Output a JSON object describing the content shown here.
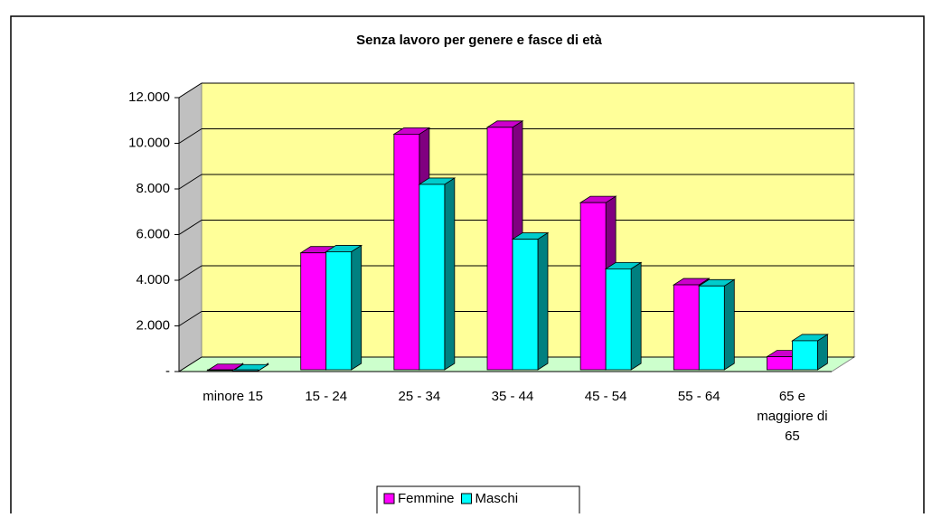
{
  "chart_data": {
    "type": "bar3d",
    "title": "Senza lavoro per genere e fasce di età",
    "categories": [
      "minore 15",
      "15 - 24",
      "25 - 34",
      "35 - 44",
      "45 - 54",
      "55 - 64",
      "65 e maggiore di 65"
    ],
    "series": [
      {
        "name": "Femmine",
        "color": "#ff00ff",
        "values": [
          50,
          5200,
          10400,
          10700,
          7400,
          3800,
          650
        ]
      },
      {
        "name": "Maschi",
        "color": "#00ffff",
        "values": [
          30,
          5250,
          8200,
          5800,
          4500,
          3750,
          1350
        ]
      }
    ],
    "ylim": [
      0,
      12000
    ],
    "yticks": [
      {
        "value": 0,
        "label": "-"
      },
      {
        "value": 2000,
        "label": "2.000"
      },
      {
        "value": 4000,
        "label": "4.000"
      },
      {
        "value": 6000,
        "label": "6.000"
      },
      {
        "value": 8000,
        "label": "8.000"
      },
      {
        "value": 10000,
        "label": "10.000"
      },
      {
        "value": 12000,
        "label": "12.000"
      }
    ],
    "grid": true,
    "legend": "bottom"
  }
}
